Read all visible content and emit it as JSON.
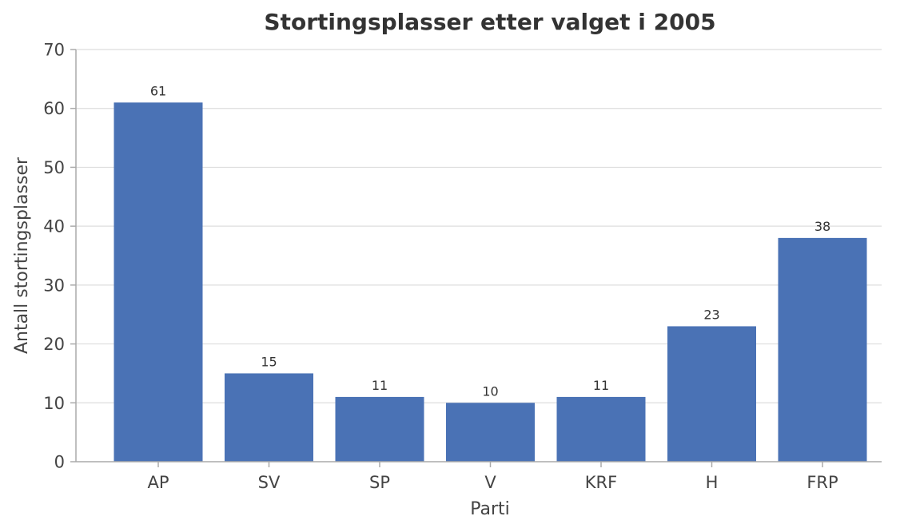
{
  "chart_data": {
    "type": "bar",
    "title": "Stortingsplasser etter valget i 2005",
    "xlabel": "Parti",
    "ylabel": "Antall stortingsplasser",
    "categories": [
      "AP",
      "SV",
      "SP",
      "V",
      "KRF",
      "H",
      "FRP"
    ],
    "values": [
      61,
      15,
      11,
      10,
      11,
      23,
      38
    ],
    "ylim": [
      0,
      70
    ],
    "yticks": [
      0,
      10,
      20,
      30,
      40,
      50,
      60,
      70
    ],
    "grid": true,
    "bar_color": "#4a72b5"
  }
}
